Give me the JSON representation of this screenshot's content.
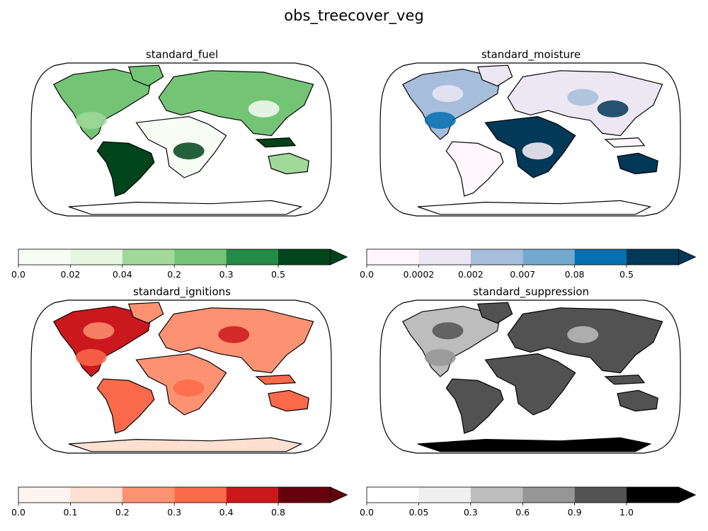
{
  "figure": {
    "title": "obs_treecover_veg"
  },
  "chart_data": [
    {
      "type": "heatmap",
      "title": "standard_fuel",
      "projection": "Robinson",
      "colorbar": {
        "ticks": [
          "0.0",
          "0.02",
          "0.04",
          "0.2",
          "0.3",
          "0.5"
        ],
        "colors": [
          "#f7fcf5",
          "#e5f5e0",
          "#a1d99b",
          "#74c476",
          "#238b45",
          "#00441b"
        ],
        "extend": "max"
      },
      "land_levels": {
        "desert": 0,
        "grass": 2,
        "temperate": 3,
        "boreal": 3,
        "tropical": 5,
        "australia": 2
      }
    },
    {
      "type": "heatmap",
      "title": "standard_moisture",
      "projection": "Robinson",
      "colorbar": {
        "ticks": [
          "0.0",
          "0.0002",
          "0.002",
          "0.007",
          "0.08",
          "0.5"
        ],
        "colors": [
          "#fff7fb",
          "#ece7f2",
          "#a6bddb",
          "#74a9cf",
          "#0570b0",
          "#023858"
        ],
        "extend": "max"
      },
      "land_levels": {
        "desert": 5,
        "grass": 4,
        "temperate": 2,
        "boreal": 1,
        "tropical": 0,
        "australia": 5
      }
    },
    {
      "type": "heatmap",
      "title": "standard_ignitions",
      "projection": "Robinson",
      "colorbar": {
        "ticks": [
          "0.0",
          "0.1",
          "0.2",
          "0.3",
          "0.4",
          "0.8"
        ],
        "colors": [
          "#fff5f0",
          "#fee0d2",
          "#fc9272",
          "#fb6a4a",
          "#cb181d",
          "#67000d"
        ],
        "extend": "max"
      },
      "land_levels": {
        "desert": 2,
        "grass": 3,
        "temperate": 4,
        "boreal": 2,
        "tropical": 3,
        "australia": 3
      }
    },
    {
      "type": "heatmap",
      "title": "standard_suppression",
      "projection": "Robinson",
      "colorbar": {
        "ticks": [
          "0.0",
          "0.05",
          "0.3",
          "0.6",
          "0.9",
          "1.0"
        ],
        "colors": [
          "#ffffff",
          "#f0f0f0",
          "#bdbdbd",
          "#969696",
          "#525252",
          "#000000"
        ],
        "extend": "max"
      },
      "land_levels": {
        "desert": 4,
        "grass": 3,
        "temperate": 2,
        "boreal": 4,
        "tropical": 4,
        "australia": 4
      }
    }
  ]
}
